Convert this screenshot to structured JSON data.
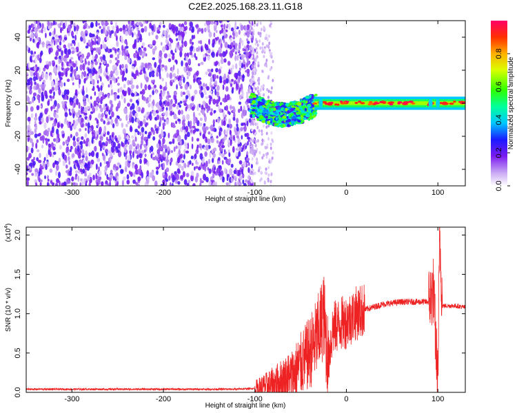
{
  "title": "C2E2.2025.168.23.11.G18",
  "chart_data": [
    {
      "type": "heatmap",
      "xlabel": "Height of straight line (km)",
      "ylabel": "Frequency (Hz)",
      "xlim": [
        -350,
        130
      ],
      "ylim": [
        -50,
        50
      ],
      "x_ticks": [
        -300,
        -200,
        -100,
        0,
        100
      ],
      "y_ticks": [
        -40,
        -20,
        0,
        20,
        40
      ],
      "description_bands": [
        {
          "x_range": [
            -350,
            -100
          ],
          "amplitude": [
            0.05,
            0.2
          ],
          "freq_spread": [
            -50,
            50
          ]
        },
        {
          "x_range": [
            -100,
            -35
          ],
          "amplitude": [
            0.3,
            0.6
          ],
          "freq_spread": [
            -10,
            6
          ]
        },
        {
          "x_range": [
            -35,
            130
          ],
          "amplitude": [
            0.6,
            1.0
          ],
          "freq_spread": [
            -2,
            3
          ]
        }
      ],
      "colorbar": {
        "label": "Normalized spectral amplitude",
        "ticks": [
          0.0,
          0.2,
          0.4,
          0.6,
          0.8
        ],
        "range": [
          0,
          1
        ]
      }
    },
    {
      "type": "line",
      "xlabel": "Height of straight line (km)",
      "ylabel": "SNR (10 * v/v)",
      "multiplier_label": "(x10",
      "multiplier_exp": "4",
      "multiplier_close": ")",
      "xlim": [
        -350,
        130
      ],
      "ylim": [
        0,
        2.1
      ],
      "x_ticks": [
        -300,
        -200,
        -100,
        0,
        100
      ],
      "y_ticks": [
        0.0,
        0.5,
        1.0,
        1.5,
        2.0
      ],
      "color": "#ee2222",
      "x": [
        -350,
        -300,
        -250,
        -200,
        -150,
        -120,
        -100,
        -80,
        -60,
        -50,
        -40,
        -30,
        -25,
        -20,
        -15,
        -10,
        0,
        10,
        20,
        40,
        60,
        80,
        90,
        95,
        100,
        102,
        105,
        110,
        120,
        130
      ],
      "y": [
        0.04,
        0.04,
        0.04,
        0.04,
        0.04,
        0.04,
        0.05,
        0.1,
        0.2,
        0.35,
        0.5,
        0.75,
        1.0,
        0.4,
        0.8,
        0.85,
        0.9,
        1.0,
        1.05,
        1.12,
        1.15,
        1.15,
        1.15,
        1.3,
        0.1,
        2.0,
        1.1,
        1.1,
        1.1,
        1.08
      ]
    }
  ]
}
